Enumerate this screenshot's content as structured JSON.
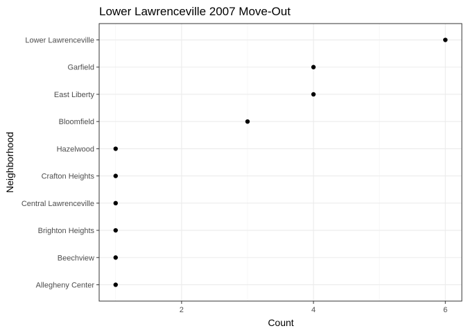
{
  "chart_data": {
    "type": "scatter",
    "title": "Lower Lawrenceville 2007 Move-Out",
    "xlabel": "Count",
    "ylabel": "Neighborhood",
    "xlim": [
      0.75,
      6.25
    ],
    "x_ticks": [
      "2",
      "4",
      "6"
    ],
    "x_tick_values": [
      2,
      4,
      6
    ],
    "grid": true,
    "categories": [
      "Lower Lawrenceville",
      "Garfield",
      "East Liberty",
      "Bloomfield",
      "Hazelwood",
      "Crafton Heights",
      "Central Lawrenceville",
      "Brighton Heights",
      "Beechview",
      "Allegheny Center"
    ],
    "values": [
      6,
      4,
      4,
      3,
      1,
      1,
      1,
      1,
      1,
      1
    ],
    "point_color": "#000000"
  }
}
